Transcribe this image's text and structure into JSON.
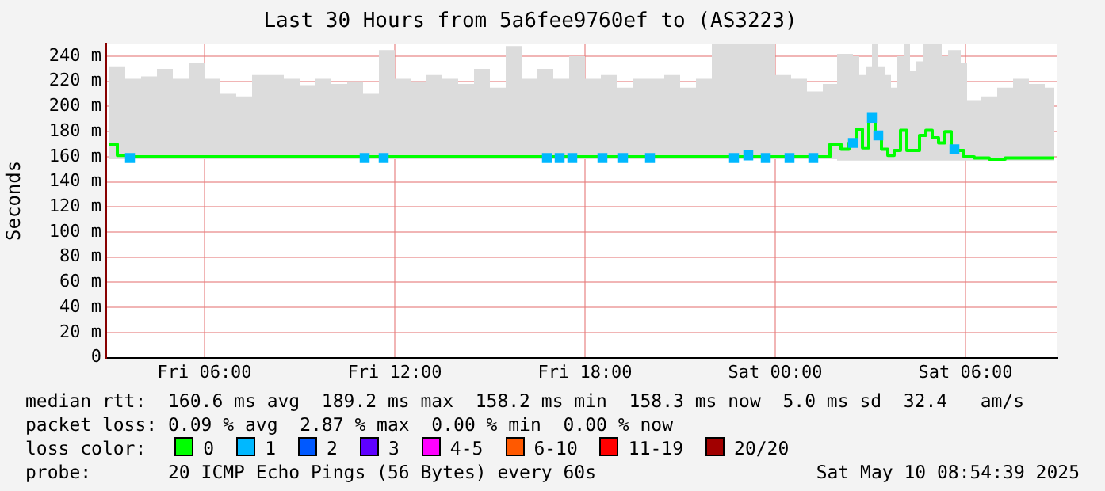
{
  "chart_data": {
    "type": "step",
    "title": "Last 30 Hours from 5a6fee9760ef to (AS3223)",
    "ylabel": "Seconds",
    "legend_title": "loss color:",
    "legend": "bottom",
    "grid": true,
    "x": [
      "2025-05-09T03:00",
      "2025-05-09T03:30",
      "2025-05-09T04:00",
      "2025-05-09T04:30",
      "2025-05-09T05:00",
      "2025-05-09T05:30",
      "2025-05-09T06:00",
      "2025-05-09T06:30",
      "2025-05-09T07:00",
      "2025-05-09T07:30",
      "2025-05-09T08:00",
      "2025-05-09T08:30",
      "2025-05-09T09:00",
      "2025-05-09T09:30",
      "2025-05-09T10:00",
      "2025-05-09T10:30",
      "2025-05-09T11:00",
      "2025-05-09T11:30",
      "2025-05-09T12:00",
      "2025-05-09T12:30",
      "2025-05-09T13:00",
      "2025-05-09T13:30",
      "2025-05-09T14:00",
      "2025-05-09T14:30",
      "2025-05-09T15:00",
      "2025-05-09T15:30",
      "2025-05-09T16:00",
      "2025-05-09T16:30",
      "2025-05-09T17:00",
      "2025-05-09T17:30",
      "2025-05-09T18:00",
      "2025-05-09T18:30",
      "2025-05-09T19:00",
      "2025-05-09T19:30",
      "2025-05-09T20:00",
      "2025-05-09T20:30",
      "2025-05-09T21:00",
      "2025-05-09T21:30",
      "2025-05-09T22:00",
      "2025-05-09T22:30",
      "2025-05-09T23:00",
      "2025-05-09T23:30",
      "2025-05-10T00:00",
      "2025-05-10T00:30",
      "2025-05-10T01:00",
      "2025-05-10T01:30",
      "2025-05-10T01:57",
      "2025-05-10T02:12",
      "2025-05-10T02:27",
      "2025-05-10T02:39",
      "2025-05-10T02:51",
      "2025-05-10T03:03",
      "2025-05-10T03:15",
      "2025-05-10T03:27",
      "2025-05-10T03:39",
      "2025-05-10T03:51",
      "2025-05-10T04:03",
      "2025-05-10T04:15",
      "2025-05-10T04:27",
      "2025-05-10T04:39",
      "2025-05-10T04:51",
      "2025-05-10T05:03",
      "2025-05-10T05:15",
      "2025-05-10T05:27",
      "2025-05-10T05:39",
      "2025-05-10T05:51",
      "2025-05-10T06:03",
      "2025-05-10T06:30",
      "2025-05-10T07:00",
      "2025-05-10T07:30",
      "2025-05-10T08:00",
      "2025-05-10T08:30",
      "2025-05-10T08:48"
    ],
    "series": [
      {
        "name": "0",
        "color": "#00ff00",
        "values": [
          170,
          161,
          160,
          160,
          160,
          160,
          160,
          160,
          160,
          160,
          160,
          160,
          160,
          160,
          160,
          160,
          160,
          160,
          160,
          160,
          160,
          160,
          160,
          160,
          160,
          160,
          160,
          160,
          160,
          160,
          160,
          160,
          160,
          160,
          160,
          160,
          160,
          160,
          160,
          160,
          160,
          160,
          160,
          160,
          160,
          160,
          170,
          166,
          171,
          182,
          167,
          191,
          177,
          166,
          161,
          165,
          181,
          165,
          165,
          177,
          181,
          175,
          171,
          180,
          166,
          165,
          160,
          159,
          158,
          159,
          159,
          159,
          159
        ],
        "lower": [
          158,
          158,
          158,
          158,
          158,
          158,
          158,
          158,
          158,
          158,
          158,
          158,
          158,
          158,
          158,
          158,
          158,
          158,
          158,
          158,
          158,
          158,
          158,
          158,
          158,
          158,
          158,
          158,
          158,
          158,
          158,
          158,
          158,
          158,
          158,
          158,
          158,
          158,
          158,
          158,
          158,
          158,
          158,
          158,
          158,
          158,
          157,
          157,
          157,
          157,
          157,
          157,
          157,
          157,
          157,
          157,
          157,
          157,
          157,
          157,
          157,
          157,
          157,
          157,
          157,
          157,
          157,
          157,
          157,
          157,
          157,
          157,
          157
        ],
        "upper": [
          232,
          222,
          224,
          230,
          222,
          235,
          222,
          210,
          208,
          225,
          225,
          222,
          217,
          222,
          218,
          220,
          210,
          245,
          222,
          220,
          225,
          222,
          218,
          230,
          215,
          248,
          222,
          230,
          222,
          240,
          222,
          225,
          215,
          222,
          222,
          225,
          215,
          222,
          250,
          250,
          250,
          250,
          225,
          222,
          212,
          218,
          242,
          242,
          240,
          225,
          232,
          250,
          232,
          225,
          215,
          240,
          250,
          228,
          236,
          250,
          250,
          250,
          240,
          245,
          245,
          235,
          205,
          208,
          215,
          222,
          218,
          215,
          205
        ]
      },
      {
        "name": "1",
        "color": "#00b8ff",
        "type": "scatter",
        "marker": "square",
        "x": [
          "2025-05-09T03:39",
          "2025-05-09T11:03",
          "2025-05-09T11:39",
          "2025-05-09T16:48",
          "2025-05-09T17:12",
          "2025-05-09T17:36",
          "2025-05-09T18:33",
          "2025-05-09T19:12",
          "2025-05-09T20:03",
          "2025-05-09T22:42",
          "2025-05-09T23:09",
          "2025-05-09T23:42",
          "2025-05-10T00:27",
          "2025-05-10T01:12",
          "2025-05-10T02:27",
          "2025-05-10T03:03",
          "2025-05-10T03:15",
          "2025-05-10T05:39"
        ],
        "values": [
          159,
          159,
          159,
          159,
          159,
          159,
          159,
          159,
          159,
          159,
          161,
          159,
          159,
          159,
          171,
          191,
          177,
          166
        ]
      },
      {
        "name": "2",
        "color": "#0059ff",
        "type": "scatter",
        "marker": "square",
        "values": [
          null,
          null,
          null,
          null,
          null,
          null,
          null,
          null,
          null,
          null,
          null,
          null,
          null,
          null,
          null,
          null,
          null,
          null,
          null,
          null,
          null,
          null,
          null,
          null,
          null,
          null,
          null,
          null,
          null,
          null,
          null,
          null,
          null,
          null,
          null,
          null,
          null,
          null,
          null,
          null,
          null,
          null,
          null,
          null,
          null,
          null,
          null,
          null,
          null,
          null,
          null,
          null,
          null,
          null,
          null,
          null,
          null,
          null,
          null,
          null,
          null,
          null,
          null,
          null,
          null,
          null,
          null,
          null,
          null,
          null,
          null,
          null,
          null
        ]
      },
      {
        "name": "3",
        "color": "#5e00ff",
        "type": "scatter",
        "marker": "square",
        "values": [
          null,
          null,
          null,
          null,
          null,
          null,
          null,
          null,
          null,
          null,
          null,
          null,
          null,
          null,
          null,
          null,
          null,
          null,
          null,
          null,
          null,
          null,
          null,
          null,
          null,
          null,
          null,
          null,
          null,
          null,
          null,
          null,
          null,
          null,
          null,
          null,
          null,
          null,
          null,
          null,
          null,
          null,
          null,
          null,
          null,
          null,
          null,
          null,
          null,
          null,
          null,
          null,
          null,
          null,
          null,
          null,
          null,
          null,
          null,
          null,
          null,
          null,
          null,
          null,
          null,
          null,
          null,
          null,
          null,
          null,
          null,
          null,
          null
        ]
      },
      {
        "name": "4-5",
        "color": "#ff00ff",
        "type": "scatter",
        "marker": "square",
        "values": [
          null,
          null,
          null,
          null,
          null,
          null,
          null,
          null,
          null,
          null,
          null,
          null,
          null,
          null,
          null,
          null,
          null,
          null,
          null,
          null,
          null,
          null,
          null,
          null,
          null,
          null,
          null,
          null,
          null,
          null,
          null,
          null,
          null,
          null,
          null,
          null,
          null,
          null,
          null,
          null,
          null,
          null,
          null,
          null,
          null,
          null,
          null,
          null,
          null,
          null,
          null,
          null,
          null,
          null,
          null,
          null,
          null,
          null,
          null,
          null,
          null,
          null,
          null,
          null,
          null,
          null,
          null,
          null,
          null,
          null,
          null,
          null,
          null
        ]
      },
      {
        "name": "6-10",
        "color": "#ff5900",
        "type": "scatter",
        "marker": "square",
        "values": [
          null,
          null,
          null,
          null,
          null,
          null,
          null,
          null,
          null,
          null,
          null,
          null,
          null,
          null,
          null,
          null,
          null,
          null,
          null,
          null,
          null,
          null,
          null,
          null,
          null,
          null,
          null,
          null,
          null,
          null,
          null,
          null,
          null,
          null,
          null,
          null,
          null,
          null,
          null,
          null,
          null,
          null,
          null,
          null,
          null,
          null,
          null,
          null,
          null,
          null,
          null,
          null,
          null,
          null,
          null,
          null,
          null,
          null,
          null,
          null,
          null,
          null,
          null,
          null,
          null,
          null,
          null,
          null,
          null,
          null,
          null,
          null,
          null
        ]
      },
      {
        "name": "11-19",
        "color": "#ff0000",
        "type": "scatter",
        "marker": "square",
        "values": [
          null,
          null,
          null,
          null,
          null,
          null,
          null,
          null,
          null,
          null,
          null,
          null,
          null,
          null,
          null,
          null,
          null,
          null,
          null,
          null,
          null,
          null,
          null,
          null,
          null,
          null,
          null,
          null,
          null,
          null,
          null,
          null,
          null,
          null,
          null,
          null,
          null,
          null,
          null,
          null,
          null,
          null,
          null,
          null,
          null,
          null,
          null,
          null,
          null,
          null,
          null,
          null,
          null,
          null,
          null,
          null,
          null,
          null,
          null,
          null,
          null,
          null,
          null,
          null,
          null,
          null,
          null,
          null,
          null,
          null,
          null,
          null,
          null
        ]
      },
      {
        "name": "20/20",
        "color": "#a10000",
        "type": "scatter",
        "marker": "square",
        "values": [
          null,
          null,
          null,
          null,
          null,
          null,
          null,
          null,
          null,
          null,
          null,
          null,
          null,
          null,
          null,
          null,
          null,
          null,
          null,
          null,
          null,
          null,
          null,
          null,
          null,
          null,
          null,
          null,
          null,
          null,
          null,
          null,
          null,
          null,
          null,
          null,
          null,
          null,
          null,
          null,
          null,
          null,
          null,
          null,
          null,
          null,
          null,
          null,
          null,
          null,
          null,
          null,
          null,
          null,
          null,
          null,
          null,
          null,
          null,
          null,
          null,
          null,
          null,
          null,
          null,
          null,
          null,
          null,
          null,
          null,
          null,
          null,
          null
        ]
      }
    ],
    "xlim": [
      "2025-05-09T02:54",
      "2025-05-10T08:54"
    ],
    "xticks": [
      {
        "value": "2025-05-09T06:00",
        "label": "Fri 06:00"
      },
      {
        "value": "2025-05-09T12:00",
        "label": "Fri 12:00"
      },
      {
        "value": "2025-05-09T18:00",
        "label": "Fri 18:00"
      },
      {
        "value": "2025-05-10T00:00",
        "label": "Sat 00:00"
      },
      {
        "value": "2025-05-10T06:00",
        "label": "Sat 06:00"
      }
    ],
    "ylim": [
      0,
      250
    ],
    "yticks": [
      0,
      {
        "value": 20,
        "label": "20 m"
      },
      {
        "value": 40,
        "label": "40 m"
      },
      {
        "value": 60,
        "label": "60 m"
      },
      {
        "value": 80,
        "label": "80 m"
      },
      {
        "value": 100,
        "label": "100 m"
      },
      {
        "value": 120,
        "label": "120 m"
      },
      {
        "value": 140,
        "label": "140 m"
      },
      {
        "value": 160,
        "label": "160 m"
      },
      {
        "value": 180,
        "label": "180 m"
      },
      {
        "value": 200,
        "label": "200 m"
      },
      {
        "value": 220,
        "label": "220 m"
      },
      {
        "value": 240,
        "label": "240 m"
      }
    ],
    "annotations": [
      "median rtt:  160.6 ms avg  189.2 ms max  158.2 ms min  158.3 ms now  5.0 ms sd  32.4   am/s",
      "packet loss: 0.09 % avg  2.87 % max  0.00 % min  0.00 % now",
      "probe:       20 ICMP Echo Pings (56 Bytes) every 60s",
      "Sat May 10 08:54:39 2025"
    ]
  }
}
